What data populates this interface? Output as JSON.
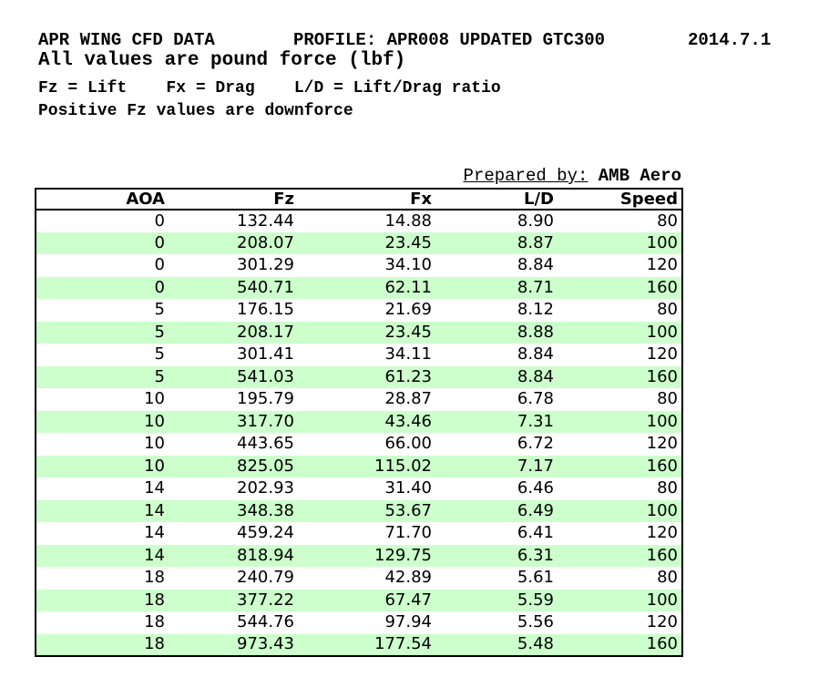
{
  "page": {
    "title_left": "APR WING CFD DATA",
    "title_profile": "PROFILE: APR008 UPDATED GTC300",
    "title_version": "2014.7.1",
    "subtitle": "All values are pound force (lbf)",
    "legend_line": "Fz = Lift    Fx = Drag    L/D = Lift/Drag ratio",
    "note_line": "Positive Fz values are downforce",
    "prepared_by_label": "Prepared by:",
    "prepared_by_value": "AMB Aero"
  },
  "table": {
    "columns": [
      "AOA",
      "Fz",
      "Fx",
      "L/D",
      "Speed"
    ],
    "rows": [
      [
        "0",
        "132.44",
        "14.88",
        "8.90",
        "80"
      ],
      [
        "0",
        "208.07",
        "23.45",
        "8.87",
        "100"
      ],
      [
        "0",
        "301.29",
        "34.10",
        "8.84",
        "120"
      ],
      [
        "0",
        "540.71",
        "62.11",
        "8.71",
        "160"
      ],
      [
        "5",
        "176.15",
        "21.69",
        "8.12",
        "80"
      ],
      [
        "5",
        "208.17",
        "23.45",
        "8.88",
        "100"
      ],
      [
        "5",
        "301.41",
        "34.11",
        "8.84",
        "120"
      ],
      [
        "5",
        "541.03",
        "61.23",
        "8.84",
        "160"
      ],
      [
        "10",
        "195.79",
        "28.87",
        "6.78",
        "80"
      ],
      [
        "10",
        "317.70",
        "43.46",
        "7.31",
        "100"
      ],
      [
        "10",
        "443.65",
        "66.00",
        "6.72",
        "120"
      ],
      [
        "10",
        "825.05",
        "115.02",
        "7.17",
        "160"
      ],
      [
        "14",
        "202.93",
        "31.40",
        "6.46",
        "80"
      ],
      [
        "14",
        "348.38",
        "53.67",
        "6.49",
        "100"
      ],
      [
        "14",
        "459.24",
        "71.70",
        "6.41",
        "120"
      ],
      [
        "14",
        "818.94",
        "129.75",
        "6.31",
        "160"
      ],
      [
        "18",
        "240.79",
        "42.89",
        "5.61",
        "80"
      ],
      [
        "18",
        "377.22",
        "67.47",
        "5.59",
        "100"
      ],
      [
        "18",
        "544.76",
        "97.94",
        "5.56",
        "120"
      ],
      [
        "18",
        "973.43",
        "177.54",
        "5.48",
        "160"
      ]
    ]
  },
  "colors": {
    "banded_row": "#ccffcc",
    "border": "#000000",
    "text": "#000000",
    "background": "#ffffff"
  }
}
